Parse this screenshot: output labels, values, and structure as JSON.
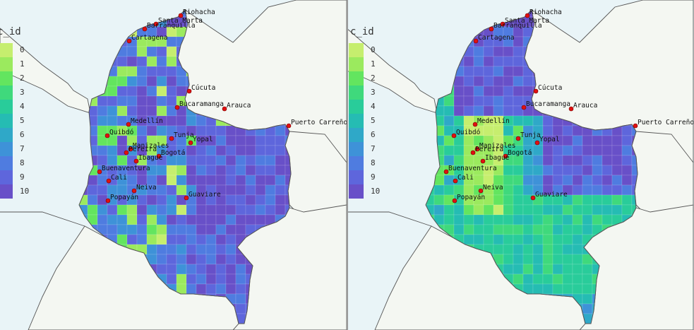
{
  "legend": {
    "title": "c_id",
    "ticks": [
      "0",
      "1",
      "2",
      "3",
      "4",
      "5",
      "6",
      "7",
      "8",
      "9",
      "10"
    ]
  },
  "colors": {
    "scale": [
      "#c6ee6e",
      "#9bea5e",
      "#63e55f",
      "#3fd97c",
      "#29cc9a",
      "#25bcb3",
      "#2fa8c8",
      "#3e92d8",
      "#4f7ce0",
      "#5e66dc",
      "#6850c8"
    ],
    "land": "#f4f7f2",
    "water": "#e9f4f7",
    "border": "#555555",
    "city": "#e01010"
  },
  "cities": [
    {
      "name": "Riohacha"
    },
    {
      "name": "Santa Marta"
    },
    {
      "name": "Barranquilla"
    },
    {
      "name": "Cartagena"
    },
    {
      "name": "Cúcuta"
    },
    {
      "name": "Bucaramanga"
    },
    {
      "name": "Arauca"
    },
    {
      "name": "Medellín"
    },
    {
      "name": "Puerto Carreño"
    },
    {
      "name": "Quibdó"
    },
    {
      "name": "Tunja"
    },
    {
      "name": "Yopal"
    },
    {
      "name": "Manizales"
    },
    {
      "name": "Pereira"
    },
    {
      "name": "Bogotá"
    },
    {
      "name": "Ibagué"
    },
    {
      "name": "Buenaventura"
    },
    {
      "name": "Cali"
    },
    {
      "name": "Neiva"
    },
    {
      "name": "Guaviare"
    },
    {
      "name": "Popayán"
    }
  ]
}
